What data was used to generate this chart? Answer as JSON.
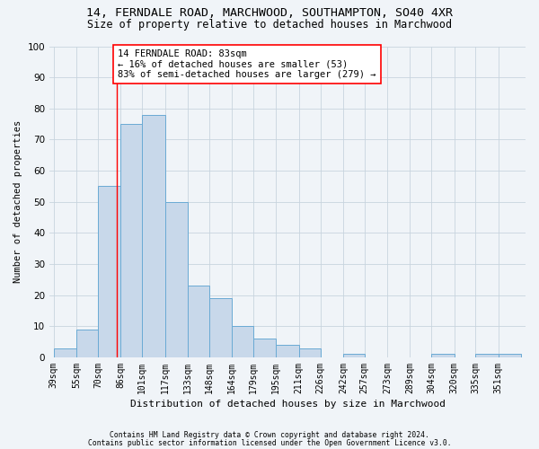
{
  "title1": "14, FERNDALE ROAD, MARCHWOOD, SOUTHAMPTON, SO40 4XR",
  "title2": "Size of property relative to detached houses in Marchwood",
  "xlabel": "Distribution of detached houses by size in Marchwood",
  "ylabel": "Number of detached properties",
  "bins": [
    "39sqm",
    "55sqm",
    "70sqm",
    "86sqm",
    "101sqm",
    "117sqm",
    "133sqm",
    "148sqm",
    "164sqm",
    "179sqm",
    "195sqm",
    "211sqm",
    "226sqm",
    "242sqm",
    "257sqm",
    "273sqm",
    "289sqm",
    "304sqm",
    "320sqm",
    "335sqm",
    "351sqm"
  ],
  "values": [
    3,
    9,
    55,
    75,
    78,
    50,
    23,
    19,
    10,
    6,
    4,
    3,
    0,
    1,
    0,
    0,
    0,
    1,
    0,
    1,
    1
  ],
  "bar_color": "#c8d8ea",
  "bar_edge_color": "#6aaad4",
  "property_size_sqm": 83,
  "annotation_line1": "14 FERNDALE ROAD: 83sqm",
  "annotation_line2": "← 16% of detached houses are smaller (53)",
  "annotation_line3": "83% of semi-detached houses are larger (279) →",
  "footnote1": "Contains HM Land Registry data © Crown copyright and database right 2024.",
  "footnote2": "Contains public sector information licensed under the Open Government Licence v3.0.",
  "ylim": [
    0,
    100
  ],
  "bin_edges": [
    39,
    55,
    70,
    86,
    101,
    117,
    133,
    148,
    164,
    179,
    195,
    211,
    226,
    242,
    257,
    273,
    289,
    304,
    320,
    335,
    351,
    367
  ],
  "background_color": "#f0f4f8",
  "grid_color": "#c8d4de",
  "title_fontsize": 9.5,
  "subtitle_fontsize": 8.5,
  "axis_label_fontsize": 8,
  "tick_fontsize": 7,
  "annotation_fontsize": 7.5,
  "footnote_fontsize": 5.8,
  "ylabel_fontsize": 7.5
}
